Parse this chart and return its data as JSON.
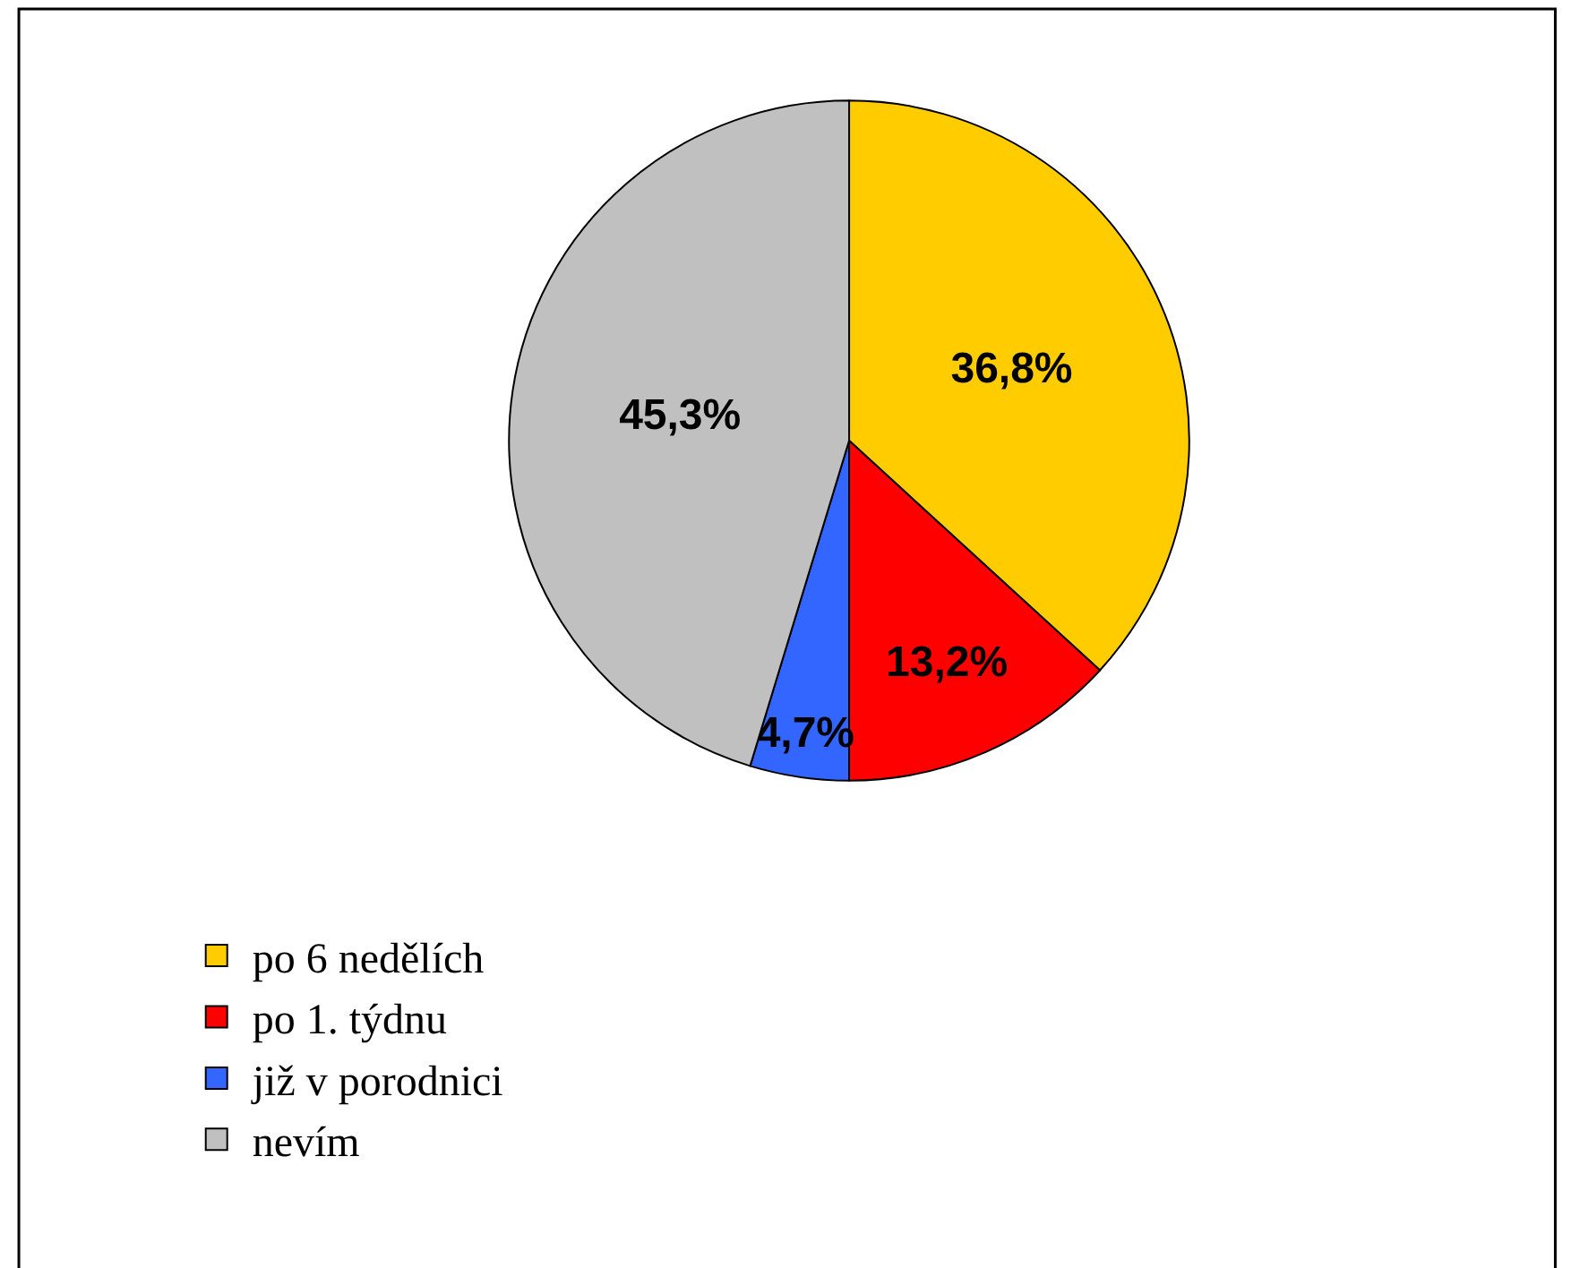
{
  "chart_data": {
    "type": "pie",
    "categories": [
      "po 6 nedělích",
      "po 1. týdnu",
      "již v porodnici",
      "nevím"
    ],
    "values": [
      36.8,
      13.2,
      4.7,
      45.3
    ],
    "value_labels": [
      "36,8%",
      "13,2%",
      "4,7%",
      "45,3%"
    ],
    "colors": [
      "#ffcc00",
      "#ff0000",
      "#3366ff",
      "#c0c0c0"
    ],
    "legend": "bottom left"
  }
}
